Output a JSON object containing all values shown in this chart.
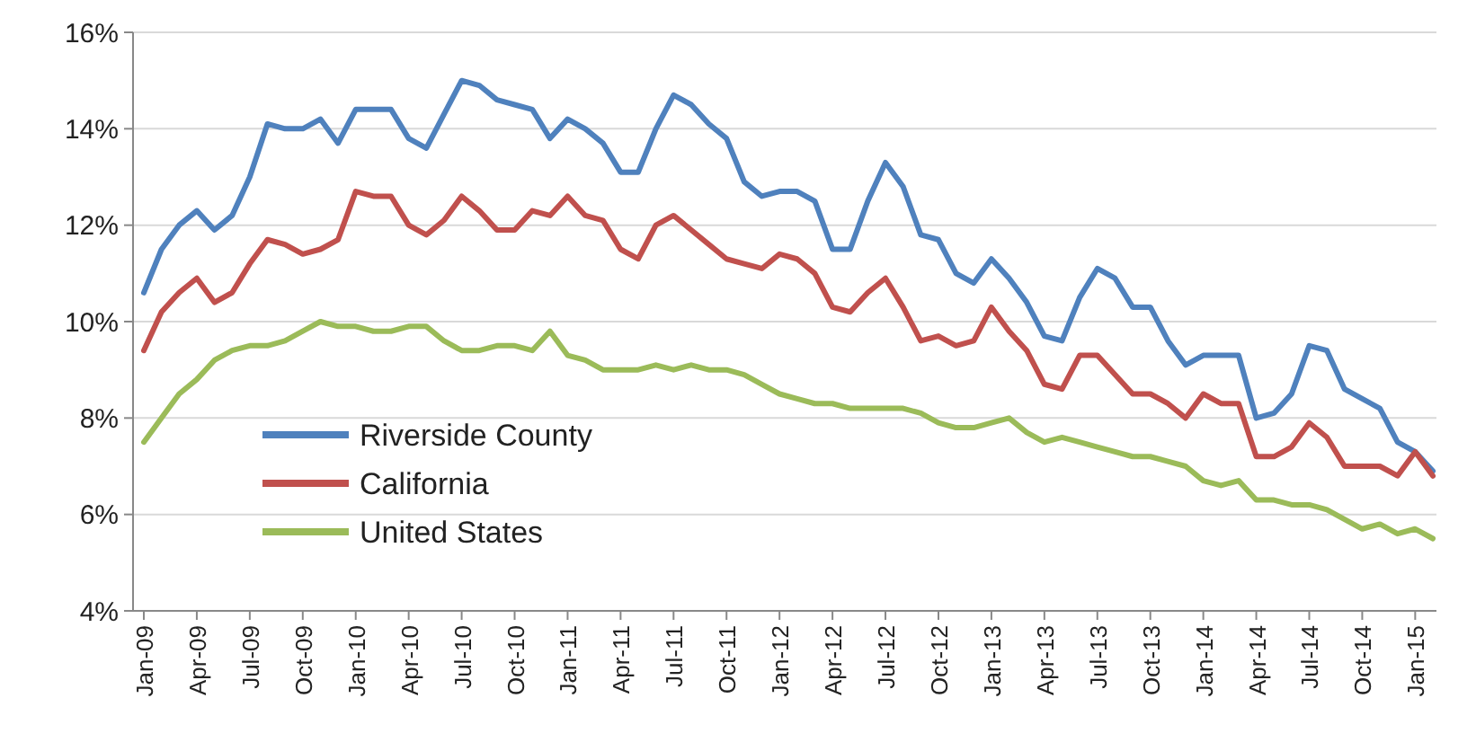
{
  "chart_data": {
    "type": "line",
    "categories": [
      "Jan-09",
      null,
      null,
      "Apr-09",
      null,
      null,
      "Jul-09",
      null,
      null,
      "Oct-09",
      null,
      null,
      "Jan-10",
      null,
      null,
      "Apr-10",
      null,
      null,
      "Jul-10",
      null,
      null,
      "Oct-10",
      null,
      null,
      "Jan-11",
      null,
      null,
      "Apr-11",
      null,
      null,
      "Jul-11",
      null,
      null,
      "Oct-11",
      null,
      null,
      "Jan-12",
      null,
      null,
      "Apr-12",
      null,
      null,
      "Jul-12",
      null,
      null,
      "Oct-12",
      null,
      null,
      "Jan-13",
      null,
      null,
      "Apr-13",
      null,
      null,
      "Jul-13",
      null,
      null,
      "Oct-13",
      null,
      null,
      "Jan-14",
      null,
      null,
      "Apr-14",
      null,
      null,
      "Jul-14",
      null,
      null,
      "Oct-14",
      null,
      null,
      "Jan-15",
      null
    ],
    "series": [
      {
        "name": "Riverside County",
        "color": "#4f81bd",
        "values": [
          10.6,
          11.5,
          12.0,
          12.3,
          11.9,
          12.2,
          13.0,
          14.1,
          14.0,
          14.0,
          14.2,
          13.7,
          14.4,
          14.4,
          14.4,
          13.8,
          13.6,
          14.3,
          15.0,
          14.9,
          14.6,
          14.5,
          14.4,
          13.8,
          14.2,
          14.0,
          13.7,
          13.1,
          13.1,
          14.0,
          14.7,
          14.5,
          14.1,
          13.8,
          12.9,
          12.6,
          12.7,
          12.7,
          12.5,
          11.5,
          11.5,
          12.5,
          13.3,
          12.8,
          11.8,
          11.7,
          11.0,
          10.8,
          11.3,
          10.9,
          10.4,
          9.7,
          9.6,
          10.5,
          11.1,
          10.9,
          10.3,
          10.3,
          9.6,
          9.1,
          9.3,
          9.3,
          9.3,
          8.0,
          8.1,
          8.5,
          9.5,
          9.4,
          8.6,
          8.4,
          8.2,
          7.5,
          7.3,
          6.9
        ]
      },
      {
        "name": "California",
        "color": "#c0504d",
        "values": [
          9.4,
          10.2,
          10.6,
          10.9,
          10.4,
          10.6,
          11.2,
          11.7,
          11.6,
          11.4,
          11.5,
          11.7,
          12.7,
          12.6,
          12.6,
          12.0,
          11.8,
          12.1,
          12.6,
          12.3,
          11.9,
          11.9,
          12.3,
          12.2,
          12.6,
          12.2,
          12.1,
          11.5,
          11.3,
          12.0,
          12.2,
          11.9,
          11.6,
          11.3,
          11.2,
          11.1,
          11.4,
          11.3,
          11.0,
          10.3,
          10.2,
          10.6,
          10.9,
          10.3,
          9.6,
          9.7,
          9.5,
          9.6,
          10.3,
          9.8,
          9.4,
          8.7,
          8.6,
          9.3,
          9.3,
          8.9,
          8.5,
          8.5,
          8.3,
          8.0,
          8.5,
          8.3,
          8.3,
          7.2,
          7.2,
          7.4,
          7.9,
          7.6,
          7.0,
          7.0,
          7.0,
          6.8,
          7.3,
          6.8
        ]
      },
      {
        "name": "United States",
        "color": "#9bbb59",
        "values": [
          7.5,
          8.0,
          8.5,
          8.8,
          9.2,
          9.4,
          9.5,
          9.5,
          9.6,
          9.8,
          10.0,
          9.9,
          9.9,
          9.8,
          9.8,
          9.9,
          9.9,
          9.6,
          9.4,
          9.4,
          9.5,
          9.5,
          9.4,
          9.8,
          9.3,
          9.2,
          9.0,
          9.0,
          9.0,
          9.1,
          9.0,
          9.1,
          9.0,
          9.0,
          8.9,
          8.7,
          8.5,
          8.4,
          8.3,
          8.3,
          8.2,
          8.2,
          8.2,
          8.2,
          8.1,
          7.9,
          7.8,
          7.8,
          7.9,
          8.0,
          7.7,
          7.5,
          7.6,
          7.5,
          7.4,
          7.3,
          7.2,
          7.2,
          7.1,
          7.0,
          6.7,
          6.6,
          6.7,
          6.3,
          6.3,
          6.2,
          6.2,
          6.1,
          5.9,
          5.7,
          5.8,
          5.6,
          5.7,
          5.5
        ]
      }
    ],
    "ylim": [
      4,
      16
    ],
    "yticks": [
      {
        "value": 4,
        "label": "4%"
      },
      {
        "value": 6,
        "label": "6%"
      },
      {
        "value": 8,
        "label": "8%"
      },
      {
        "value": 10,
        "label": "10%"
      },
      {
        "value": 12,
        "label": "12%"
      },
      {
        "value": 14,
        "label": "14%"
      },
      {
        "value": 16,
        "label": "16%"
      }
    ],
    "grid": "y",
    "legend": "bottom left",
    "marker": "none",
    "line_style": "solid"
  }
}
